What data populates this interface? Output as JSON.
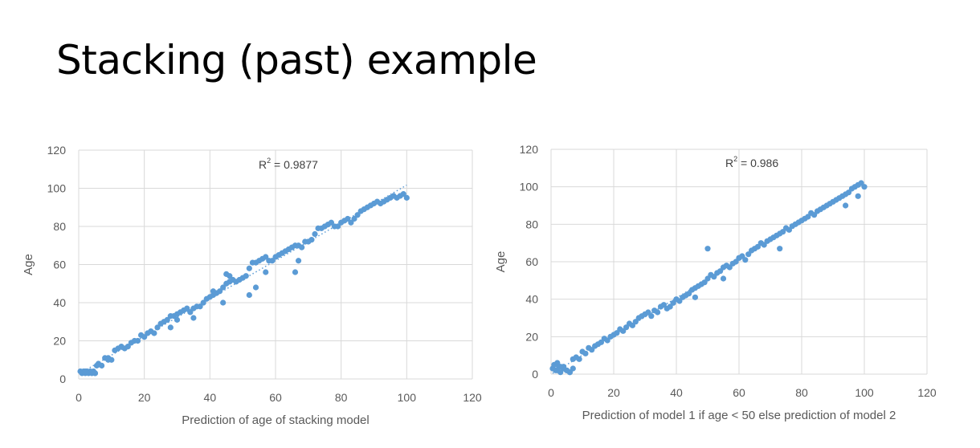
{
  "slide": {
    "title": "Stacking (past) example"
  },
  "chart_data": [
    {
      "type": "scatter",
      "xlabel": "Prediction of age of stacking model",
      "ylabel": "Age",
      "annotation": {
        "base": "R",
        "sup": "2",
        "text": " = 0.9877"
      },
      "xlim": [
        0,
        120
      ],
      "ylim": [
        0,
        120
      ],
      "xticks": [
        "0",
        "20",
        "40",
        "60",
        "80",
        "100",
        "120"
      ],
      "yticks": [
        "0",
        "20",
        "40",
        "60",
        "80",
        "100",
        "120"
      ],
      "grid": true,
      "trendline": "linear dotted",
      "color": "#5b9bd5",
      "series": [
        {
          "x": [
            0.5,
            1,
            1.5,
            2,
            2.5,
            3,
            3.5,
            4,
            4.5,
            5,
            5.5,
            6,
            7,
            8,
            9,
            10,
            11,
            12,
            13,
            14,
            15,
            16,
            17,
            18,
            19,
            20,
            21,
            22,
            23,
            24,
            25,
            26,
            27,
            28,
            29,
            30,
            31,
            32,
            33,
            34,
            35,
            36,
            37,
            38,
            39,
            40,
            41,
            42,
            43,
            44,
            45,
            46,
            47,
            48,
            49,
            50,
            51,
            52,
            53,
            54,
            55,
            56,
            57,
            58,
            59,
            60,
            61,
            62,
            63,
            64,
            65,
            66,
            67,
            68,
            69,
            70,
            71,
            72,
            73,
            74,
            75,
            76,
            77,
            78,
            79,
            80,
            81,
            82,
            83,
            84,
            85,
            86,
            87,
            88,
            89,
            90,
            91,
            92,
            93,
            94,
            95,
            96,
            97,
            98,
            99,
            100,
            45,
            46,
            52,
            66,
            67,
            41,
            44,
            30,
            35,
            57,
            54,
            9,
            28,
            2,
            5
          ],
          "y": [
            4,
            3,
            4,
            3,
            4,
            3,
            4,
            3,
            4,
            3,
            7,
            8,
            7,
            11,
            10,
            10,
            15,
            16,
            17,
            16,
            17,
            19,
            20,
            20,
            23,
            22,
            24,
            25,
            24,
            27,
            29,
            30,
            31,
            33,
            33,
            34,
            35,
            36,
            37,
            35,
            37,
            38,
            38,
            40,
            42,
            43,
            44,
            45,
            46,
            48,
            50,
            51,
            52,
            51,
            52,
            53,
            54,
            58,
            61,
            61,
            62,
            63,
            64,
            62,
            62,
            64,
            65,
            66,
            67,
            68,
            69,
            70,
            70,
            69,
            72,
            72,
            73,
            76,
            79,
            79,
            80,
            81,
            82,
            80,
            80,
            82,
            83,
            84,
            82,
            84,
            86,
            88,
            89,
            90,
            91,
            92,
            93,
            92,
            93,
            94,
            95,
            96,
            95,
            96,
            97,
            95,
            55,
            54,
            44,
            56,
            62,
            46,
            40,
            31,
            32,
            56,
            48,
            11,
            27,
            4,
            3
          ]
        }
      ]
    },
    {
      "type": "scatter",
      "xlabel": "Prediction of model 1 if age < 50 else prediction of model 2",
      "ylabel": "Age",
      "annotation": {
        "base": "R",
        "sup": "2",
        "text": " = 0.986"
      },
      "xlim": [
        0,
        120
      ],
      "ylim": [
        0,
        120
      ],
      "xticks": [
        "0",
        "20",
        "40",
        "60",
        "80",
        "100",
        "120"
      ],
      "yticks": [
        "0",
        "20",
        "40",
        "60",
        "80",
        "100",
        "120"
      ],
      "grid": true,
      "trendline": "linear dotted",
      "color": "#5b9bd5",
      "series": [
        {
          "x": [
            0.5,
            1,
            1.5,
            2,
            2.5,
            3,
            4,
            5,
            6,
            7,
            8,
            9,
            10,
            11,
            12,
            13,
            14,
            15,
            16,
            17,
            18,
            19,
            20,
            21,
            22,
            23,
            24,
            25,
            26,
            27,
            28,
            29,
            30,
            31,
            32,
            33,
            34,
            35,
            36,
            37,
            38,
            39,
            40,
            41,
            42,
            43,
            44,
            45,
            46,
            47,
            48,
            49,
            50,
            51,
            52,
            53,
            54,
            55,
            56,
            57,
            58,
            59,
            60,
            61,
            62,
            63,
            64,
            65,
            66,
            67,
            68,
            69,
            70,
            71,
            72,
            73,
            74,
            75,
            76,
            77,
            78,
            79,
            80,
            81,
            82,
            83,
            84,
            85,
            86,
            87,
            88,
            89,
            90,
            91,
            92,
            93,
            94,
            95,
            96,
            97,
            98,
            99,
            100,
            50,
            6,
            2,
            7,
            4,
            73,
            60,
            46,
            55,
            98,
            3,
            94,
            5
          ],
          "y": [
            3,
            5,
            2,
            6,
            4,
            1,
            3,
            2,
            1,
            8,
            9,
            8,
            12,
            11,
            14,
            13,
            15,
            16,
            17,
            19,
            18,
            20,
            21,
            22,
            24,
            23,
            25,
            27,
            26,
            28,
            30,
            31,
            32,
            33,
            31,
            34,
            33,
            36,
            37,
            35,
            36,
            38,
            40,
            39,
            41,
            42,
            43,
            45,
            46,
            47,
            48,
            49,
            51,
            53,
            52,
            54,
            55,
            57,
            58,
            57,
            59,
            60,
            62,
            63,
            61,
            64,
            66,
            67,
            68,
            70,
            69,
            71,
            72,
            73,
            74,
            75,
            76,
            78,
            77,
            79,
            80,
            81,
            82,
            83,
            84,
            86,
            85,
            87,
            88,
            89,
            90,
            91,
            92,
            93,
            94,
            95,
            96,
            97,
            99,
            100,
            101,
            102,
            100,
            67,
            1,
            2,
            3,
            4,
            67,
            62,
            41,
            51,
            95,
            4,
            90,
            2
          ]
        }
      ]
    }
  ]
}
